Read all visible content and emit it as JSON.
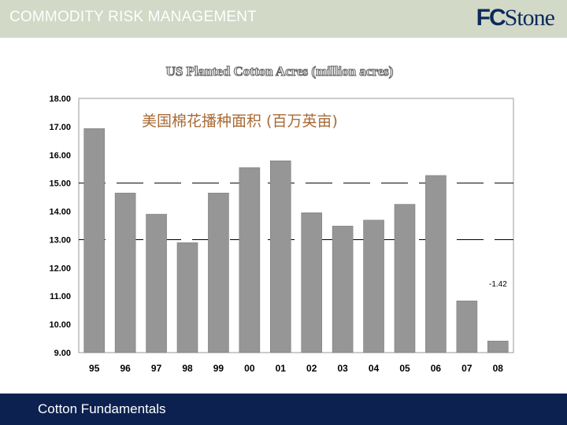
{
  "header": {
    "title": "COMMODITY RISK MANAGEMENT",
    "logo_text": "FCStone",
    "background_color": "#d2d9c7",
    "logo_color": "#0c2a5b"
  },
  "footer": {
    "text": "Cotton Fundamentals",
    "background_color": "#0d2150"
  },
  "chart_data": {
    "type": "bar",
    "title": "US Planted Cotton Acres (million acres)",
    "subtitle": "美国棉花播种面积 (百万英亩)",
    "categories": [
      "95",
      "96",
      "97",
      "98",
      "99",
      "00",
      "01",
      "02",
      "03",
      "04",
      "05",
      "06",
      "07",
      "08"
    ],
    "values": [
      16.93,
      14.65,
      13.9,
      12.89,
      14.65,
      15.55,
      15.79,
      13.95,
      13.48,
      13.69,
      14.25,
      15.27,
      10.83,
      9.41
    ],
    "ylim": [
      9.0,
      18.0
    ],
    "yticks": [
      "18.00",
      "17.00",
      "16.00",
      "15.00",
      "14.00",
      "13.00",
      "12.00",
      "11.00",
      "10.00",
      "9.00"
    ],
    "annotation": "-1.42",
    "bar_color": "#969696",
    "grid": "dashed lines at 15.00 and 13.00",
    "legend": "none"
  }
}
